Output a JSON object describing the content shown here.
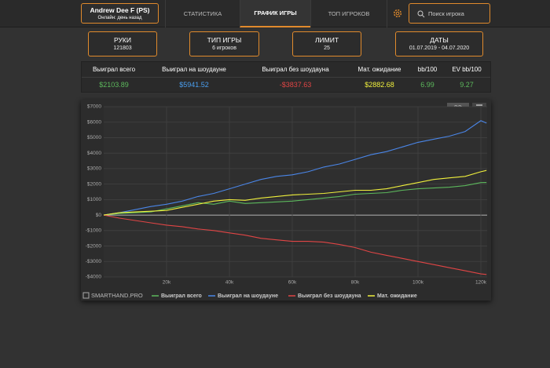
{
  "header": {
    "user": {
      "name": "Andrew Dee F (PS)",
      "status": "Онлайн: день назад"
    },
    "tabs": [
      "СТАТИСТИКА",
      "ГРАФИК ИГРЫ",
      "ТОП ИГРОКОВ"
    ],
    "search_placeholder": "Поиск игрока"
  },
  "cards": [
    {
      "title": "РУКИ",
      "value": "121803"
    },
    {
      "title": "ТИП ИГРЫ",
      "value": "6 игроков"
    },
    {
      "title": "ЛИМИТ",
      "value": "25"
    },
    {
      "title": "ДАТЫ",
      "value": "01.07.2019 - 04.07.2020"
    }
  ],
  "table": {
    "headers": [
      "Выиграл всего",
      "Выиграл на шоудауне",
      "Выиграл без шоудауна",
      "Мат. ожидание",
      "bb/100",
      "EV bb/100"
    ],
    "values": [
      "$2103.89",
      "$5941.52",
      "-$3837.63",
      "$2882.68",
      "6.99",
      "9.27"
    ]
  },
  "chart_data": {
    "type": "line",
    "watermark": "SMARTHAND.PRO",
    "unit_button": "BB",
    "x": [
      0,
      5000,
      10000,
      15000,
      20000,
      25000,
      30000,
      35000,
      40000,
      45000,
      50000,
      55000,
      60000,
      65000,
      70000,
      75000,
      80000,
      85000,
      90000,
      95000,
      100000,
      105000,
      110000,
      115000,
      120000,
      121803
    ],
    "series": [
      {
        "name": "Выиграл всего",
        "color": "#5cb85c",
        "values": [
          0,
          100,
          150,
          200,
          400,
          600,
          800,
          700,
          900,
          750,
          800,
          850,
          900,
          1000,
          1100,
          1200,
          1350,
          1400,
          1450,
          1600,
          1700,
          1750,
          1800,
          1900,
          2100,
          2104
        ]
      },
      {
        "name": "Выиграл на шоудауне",
        "color": "#4a86e8",
        "values": [
          0,
          150,
          350,
          550,
          700,
          900,
          1200,
          1400,
          1700,
          2000,
          2300,
          2500,
          2600,
          2800,
          3100,
          3300,
          3600,
          3900,
          4100,
          4400,
          4700,
          4900,
          5100,
          5400,
          6100,
          5941
        ]
      },
      {
        "name": "Выиграл без шоудауна",
        "color": "#e04545",
        "values": [
          0,
          -200,
          -350,
          -500,
          -650,
          -750,
          -900,
          -1000,
          -1150,
          -1300,
          -1500,
          -1600,
          -1700,
          -1700,
          -1750,
          -1900,
          -2100,
          -2400,
          -2600,
          -2800,
          -3000,
          -3200,
          -3400,
          -3600,
          -3800,
          -3838
        ]
      },
      {
        "name": "Мат. ожидание",
        "color": "#f0f03c",
        "values": [
          0,
          150,
          200,
          250,
          300,
          500,
          700,
          900,
          1000,
          950,
          1100,
          1200,
          1300,
          1350,
          1400,
          1500,
          1600,
          1600,
          1700,
          1900,
          2100,
          2300,
          2400,
          2500,
          2800,
          2883
        ]
      }
    ],
    "xlim": [
      0,
      122000
    ],
    "xticks": [
      {
        "value": 20000,
        "label": "20k"
      },
      {
        "value": 40000,
        "label": "40k"
      },
      {
        "value": 60000,
        "label": "60k"
      },
      {
        "value": 80000,
        "label": "80k"
      },
      {
        "value": 100000,
        "label": "100k"
      },
      {
        "value": 120000,
        "label": "120k"
      }
    ],
    "ylim": [
      -4000,
      7000
    ],
    "yticks": [
      {
        "value": -4000,
        "label": "-$4000"
      },
      {
        "value": -3000,
        "label": "-$3000"
      },
      {
        "value": -2000,
        "label": "-$2000"
      },
      {
        "value": -1000,
        "label": "-$1000"
      },
      {
        "value": 0,
        "label": "$0"
      },
      {
        "value": 1000,
        "label": "$1000"
      },
      {
        "value": 2000,
        "label": "$2000"
      },
      {
        "value": 3000,
        "label": "$3000"
      },
      {
        "value": 4000,
        "label": "$4000"
      },
      {
        "value": 5000,
        "label": "$5000"
      },
      {
        "value": 6000,
        "label": "$6000"
      },
      {
        "value": 7000,
        "label": "$7000"
      }
    ],
    "grid": true
  }
}
